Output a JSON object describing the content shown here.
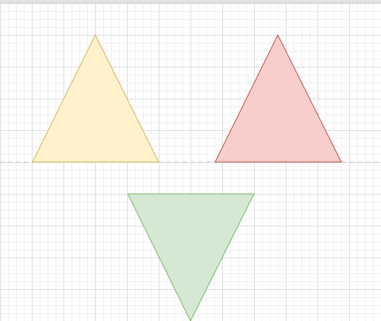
{
  "canvas": {
    "background": "#ffffff",
    "grid_minor_color": "#f0f0f0",
    "grid_major_color": "#dedede",
    "guide_color": "#c8c8c8"
  },
  "shapes": [
    {
      "name": "triangle-yellow",
      "kind": "triangle",
      "orientation": "up",
      "fill": "#fff2cc",
      "stroke": "#d6b656"
    },
    {
      "name": "triangle-red",
      "kind": "triangle",
      "orientation": "up",
      "fill": "#f8cecc",
      "stroke": "#b85450"
    },
    {
      "name": "triangle-green",
      "kind": "triangle",
      "orientation": "down",
      "fill": "#d5e8d4",
      "stroke": "#82b366"
    }
  ]
}
